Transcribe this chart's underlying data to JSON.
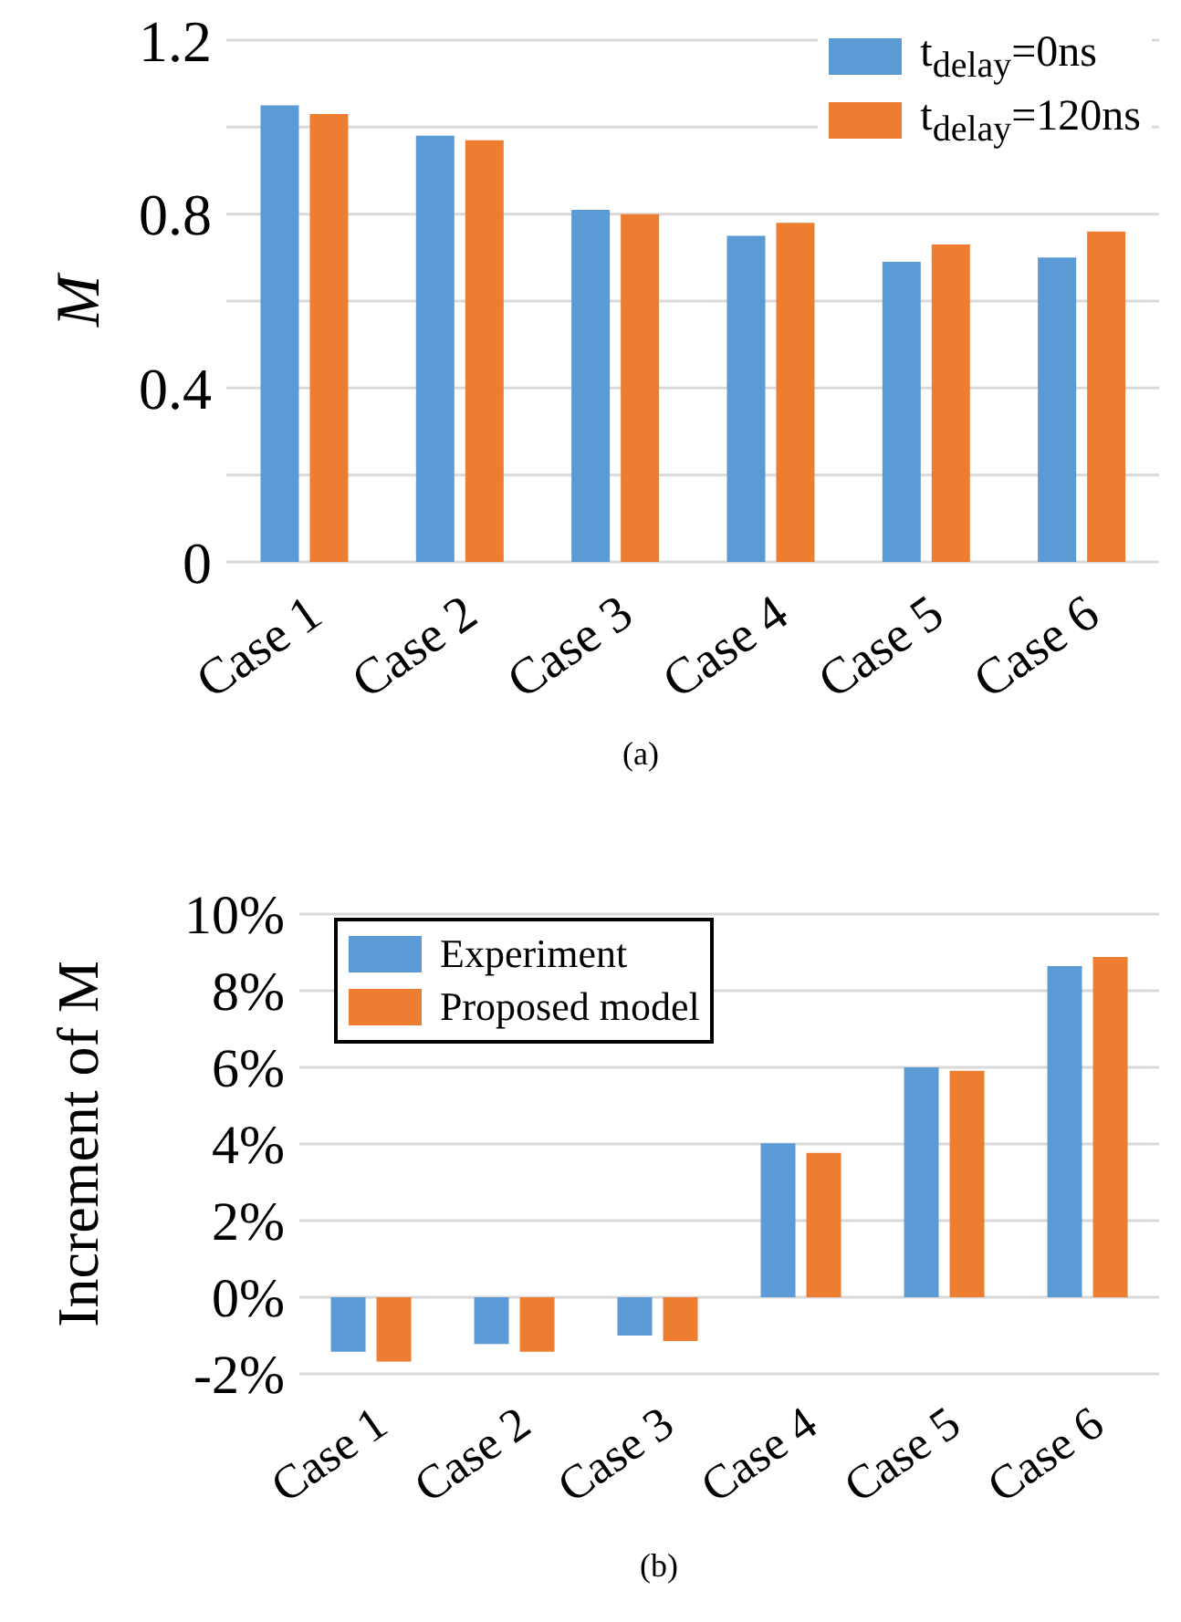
{
  "chart_data": [
    {
      "type": "bar",
      "title": "(a)",
      "ylabel": "M",
      "categories": [
        "Case 1",
        "Case 2",
        "Case 3",
        "Case 4",
        "Case 5",
        "Case 6"
      ],
      "series": [
        {
          "name": "t$_{delay}$=0ns",
          "color": "#5b9bd5",
          "values": [
            1.05,
            0.98,
            0.81,
            0.75,
            0.69,
            0.7
          ]
        },
        {
          "name": "t$_{delay}$=120ns",
          "color": "#ed7d31",
          "values": [
            1.03,
            0.97,
            0.8,
            0.78,
            0.73,
            0.76
          ]
        }
      ],
      "ylim": [
        0,
        1.2
      ],
      "yticks": [
        0,
        {
          "value": 0.2,
          "label": null
        },
        0.4,
        {
          "value": 0.6,
          "label": null
        },
        0.8,
        {
          "value": 1.0,
          "label": null
        },
        1.2
      ],
      "grid": "y",
      "legend": "top right"
    },
    {
      "type": "bar",
      "title": "(b)",
      "ylabel": "Increment of M",
      "categories": [
        "Case 1",
        "Case 2",
        "Case 3",
        "Case 4",
        "Case 5",
        "Case 6"
      ],
      "series": [
        {
          "name": "Experiment",
          "color": "#5b9bd5",
          "values": [
            -1.42,
            -1.22,
            -1.0,
            4.02,
            6.0,
            8.64
          ]
        },
        {
          "name": "Proposed model",
          "color": "#ed7d31",
          "values": [
            -1.68,
            -1.42,
            -1.14,
            3.77,
            5.91,
            8.88
          ]
        }
      ],
      "ylim": [
        -2,
        10
      ],
      "yticks": [
        {
          "value": -2,
          "label": "-2%"
        },
        {
          "value": 0,
          "label": "0%"
        },
        {
          "value": 2,
          "label": "2%"
        },
        {
          "value": 4,
          "label": "4%"
        },
        {
          "value": 6,
          "label": "6%"
        },
        {
          "value": 8,
          "label": "8%"
        },
        {
          "value": 10,
          "label": "10%"
        }
      ],
      "grid": "y",
      "legend": "top left"
    }
  ]
}
